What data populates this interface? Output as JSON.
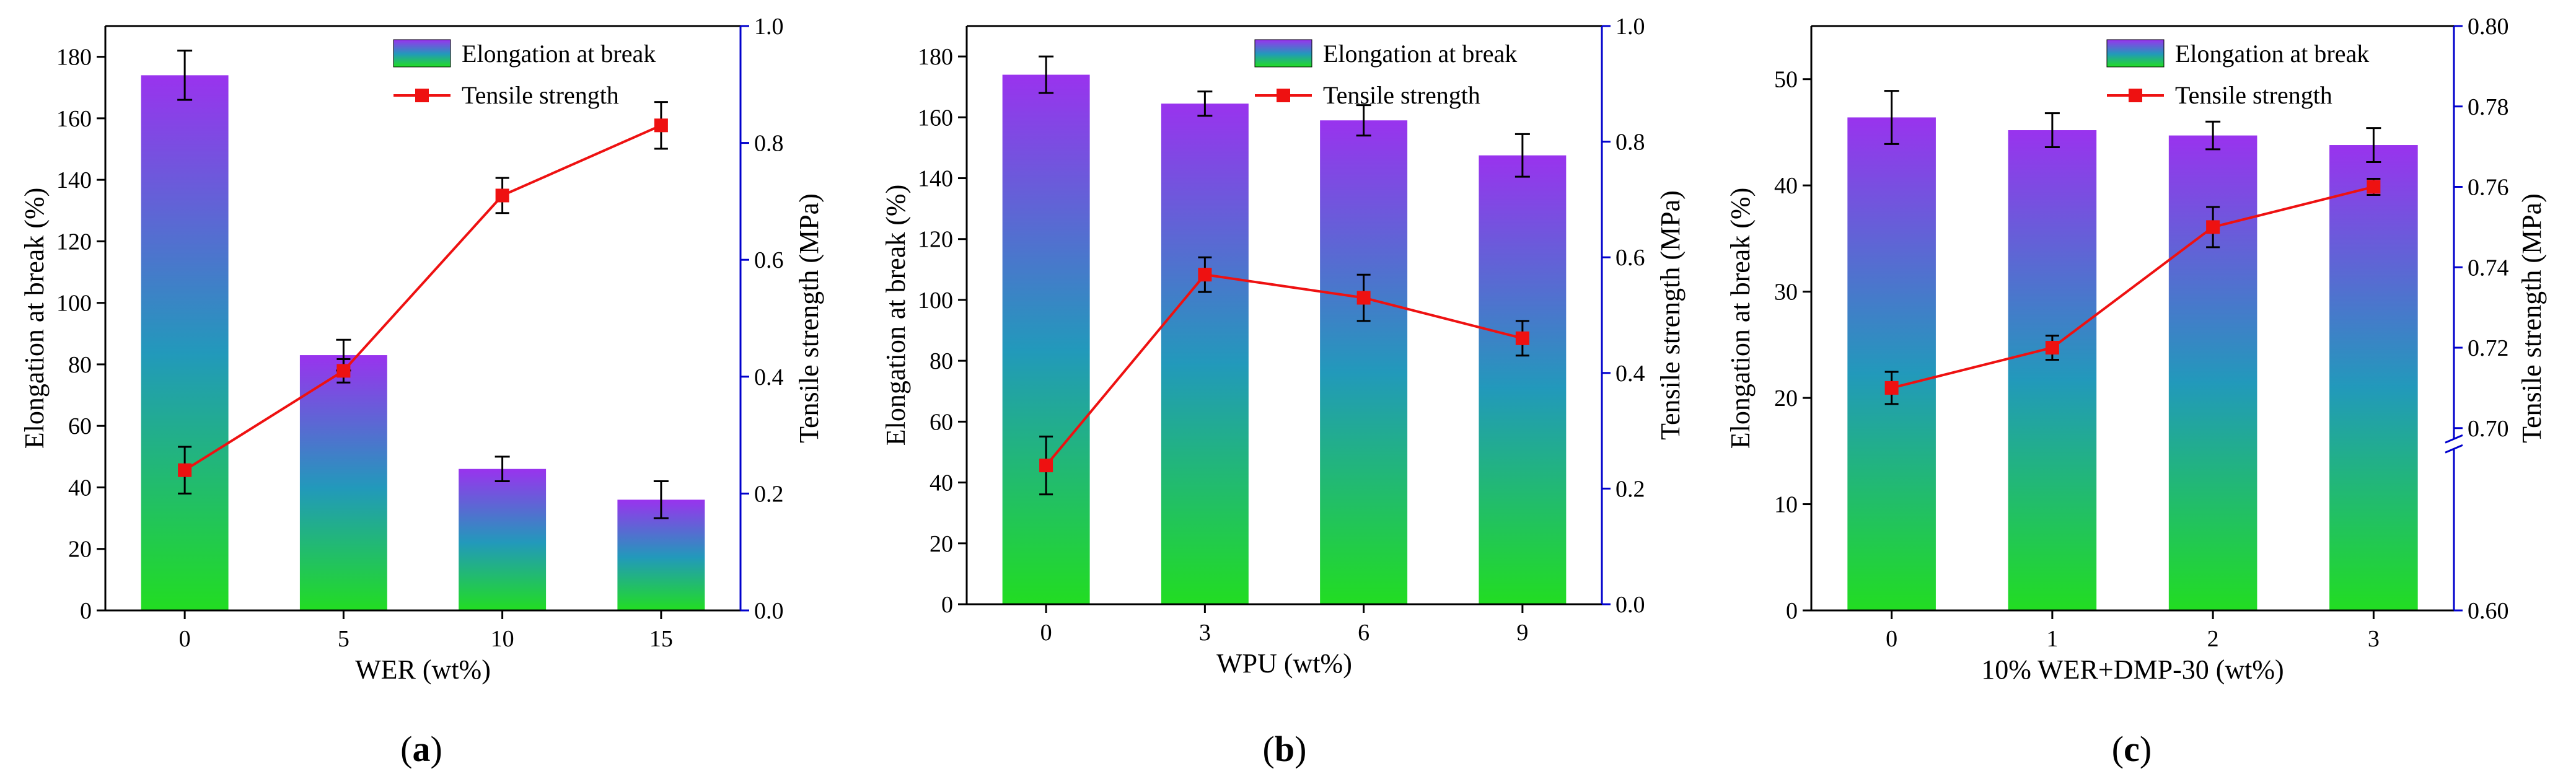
{
  "figure": {
    "panels": [
      {
        "id": "a",
        "label_open": "(",
        "label_letter": "a",
        "label_close": ")"
      },
      {
        "id": "b",
        "label_open": "(",
        "label_letter": "b",
        "label_close": ")"
      },
      {
        "id": "c",
        "label_open": "(",
        "label_letter": "c",
        "label_close": ")"
      }
    ]
  },
  "colors": {
    "bar_top": "#9933ee",
    "bar_mid": "#2299bb",
    "bar_bottom": "#22dd22",
    "line": "#ee1111",
    "right_axis": "#0000cc",
    "error_bar": "#000000"
  },
  "chart_data": [
    {
      "type": "bar+line",
      "title": "",
      "xlabel": "WER (wt%)",
      "ylabel": "Elongation at break (%)",
      "y2label": "Tensile strength (MPa)",
      "categories": [
        "0",
        "5",
        "10",
        "15"
      ],
      "ylim": [
        0,
        190
      ],
      "yticks": [
        0,
        20,
        40,
        60,
        80,
        100,
        120,
        140,
        160,
        180
      ],
      "y2lim": [
        0,
        1.0
      ],
      "y2ticks": [
        "0.0",
        "0.2",
        "0.4",
        "0.6",
        "0.8",
        "1.0"
      ],
      "y2tick_values": [
        0,
        0.2,
        0.4,
        0.6,
        0.8,
        1.0
      ],
      "legend": [
        "Elongation at break",
        "Tensile strength"
      ],
      "legend_position": "top-right",
      "series": [
        {
          "name": "Elongation at break",
          "kind": "bar",
          "values": [
            174,
            83,
            46,
            36
          ],
          "errors": [
            8,
            5,
            4,
            6
          ]
        },
        {
          "name": "Tensile strength",
          "kind": "line",
          "axis": "right",
          "values": [
            0.24,
            0.41,
            0.71,
            0.83
          ],
          "errors": [
            0.04,
            0.02,
            0.03,
            0.04
          ]
        }
      ]
    },
    {
      "type": "bar+line",
      "title": "",
      "xlabel": "WPU (wt%)",
      "ylabel": "Elongation at break (%)",
      "y2label": "Tensile strength (MPa)",
      "categories": [
        "0",
        "3",
        "6",
        "9"
      ],
      "ylim": [
        0,
        190
      ],
      "yticks": [
        0,
        20,
        40,
        60,
        80,
        100,
        120,
        140,
        160,
        180
      ],
      "y2lim": [
        0,
        1.0
      ],
      "y2ticks": [
        "0.0",
        "0.2",
        "0.4",
        "0.6",
        "0.8",
        "1.0"
      ],
      "y2tick_values": [
        0,
        0.2,
        0.4,
        0.6,
        0.8,
        1.0
      ],
      "legend": [
        "Elongation at break",
        "Tensile strength"
      ],
      "legend_position": "top-right",
      "series": [
        {
          "name": "Elongation at break",
          "kind": "bar",
          "values": [
            174,
            164.5,
            159,
            147.5
          ],
          "errors": [
            6,
            4,
            5,
            7
          ]
        },
        {
          "name": "Tensile strength",
          "kind": "line",
          "axis": "right",
          "values": [
            0.24,
            0.57,
            0.53,
            0.46
          ],
          "errors": [
            0.05,
            0.03,
            0.04,
            0.03
          ]
        }
      ]
    },
    {
      "type": "bar+line",
      "title": "",
      "xlabel": "10% WER+DMP-30 (wt%)",
      "ylabel": "Elongation at break (%)",
      "y2label": "Tensile strength (MPa)",
      "categories": [
        "0",
        "1",
        "2",
        "3"
      ],
      "ylim": [
        0,
        55
      ],
      "yticks": [
        0,
        10,
        20,
        30,
        40,
        50
      ],
      "y2ticks": [
        "0.60",
        "0.70",
        "0.72",
        "0.74",
        "0.76",
        "0.78",
        "0.80"
      ],
      "y2tick_values": [
        0.6,
        0.7,
        0.72,
        0.74,
        0.76,
        0.78,
        0.8
      ],
      "y2_axis_break": true,
      "legend": [
        "Elongation at break",
        "Tensile strength"
      ],
      "legend_position": "top-right",
      "series": [
        {
          "name": "Elongation at break",
          "kind": "bar",
          "values": [
            46.4,
            45.2,
            44.7,
            43.8
          ],
          "errors": [
            2.5,
            1.6,
            1.3,
            1.6
          ]
        },
        {
          "name": "Tensile strength",
          "kind": "line",
          "axis": "right",
          "values": [
            0.71,
            0.72,
            0.75,
            0.76
          ],
          "errors": [
            0.004,
            0.003,
            0.005,
            0.002
          ]
        }
      ]
    }
  ]
}
